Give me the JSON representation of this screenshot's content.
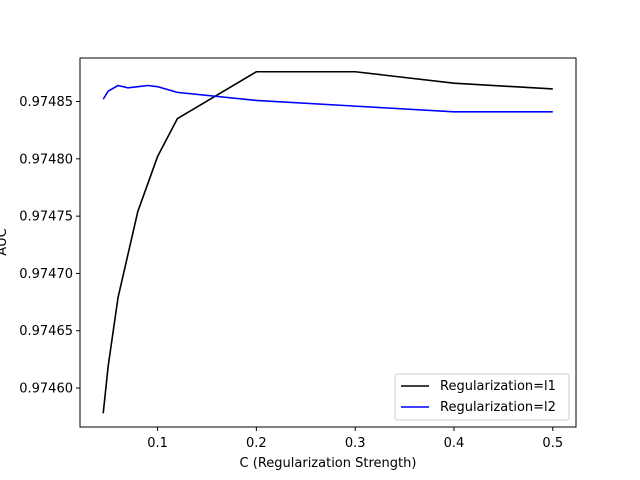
{
  "chart_data": {
    "type": "line",
    "title": "",
    "xlabel": "C (Regularization Strength)",
    "ylabel": "AUC",
    "xlim": [
      0.0215,
      0.5235
    ],
    "ylim": [
      0.974566,
      0.974888
    ],
    "xticks": [
      0.1,
      0.2,
      0.3,
      0.4,
      0.5
    ],
    "xtick_labels": [
      "0.1",
      "0.2",
      "0.3",
      "0.4",
      "0.5"
    ],
    "yticks": [
      0.9746,
      0.97465,
      0.9747,
      0.97475,
      0.9748,
      0.97485
    ],
    "ytick_labels": [
      "0.97460",
      "0.97465",
      "0.97470",
      "0.97475",
      "0.97480",
      "0.97485"
    ],
    "grid": false,
    "legend_position": "lower-right",
    "series": [
      {
        "name": "Regularization=l1",
        "color": "#000000",
        "x": [
          0.045,
          0.05,
          0.06,
          0.08,
          0.1,
          0.12,
          0.2,
          0.3,
          0.4,
          0.5
        ],
        "y": [
          0.974578,
          0.974619,
          0.974679,
          0.974754,
          0.974802,
          0.974835,
          0.974876,
          0.974876,
          0.974866,
          0.974861
        ]
      },
      {
        "name": "Regularization=l2",
        "color": "#0000ff",
        "x": [
          0.045,
          0.05,
          0.06,
          0.07,
          0.08,
          0.09,
          0.1,
          0.12,
          0.2,
          0.3,
          0.4,
          0.5
        ],
        "y": [
          0.974852,
          0.974859,
          0.974864,
          0.974862,
          0.974863,
          0.974864,
          0.974863,
          0.974858,
          0.974851,
          0.974846,
          0.974841,
          0.974841
        ]
      }
    ]
  }
}
